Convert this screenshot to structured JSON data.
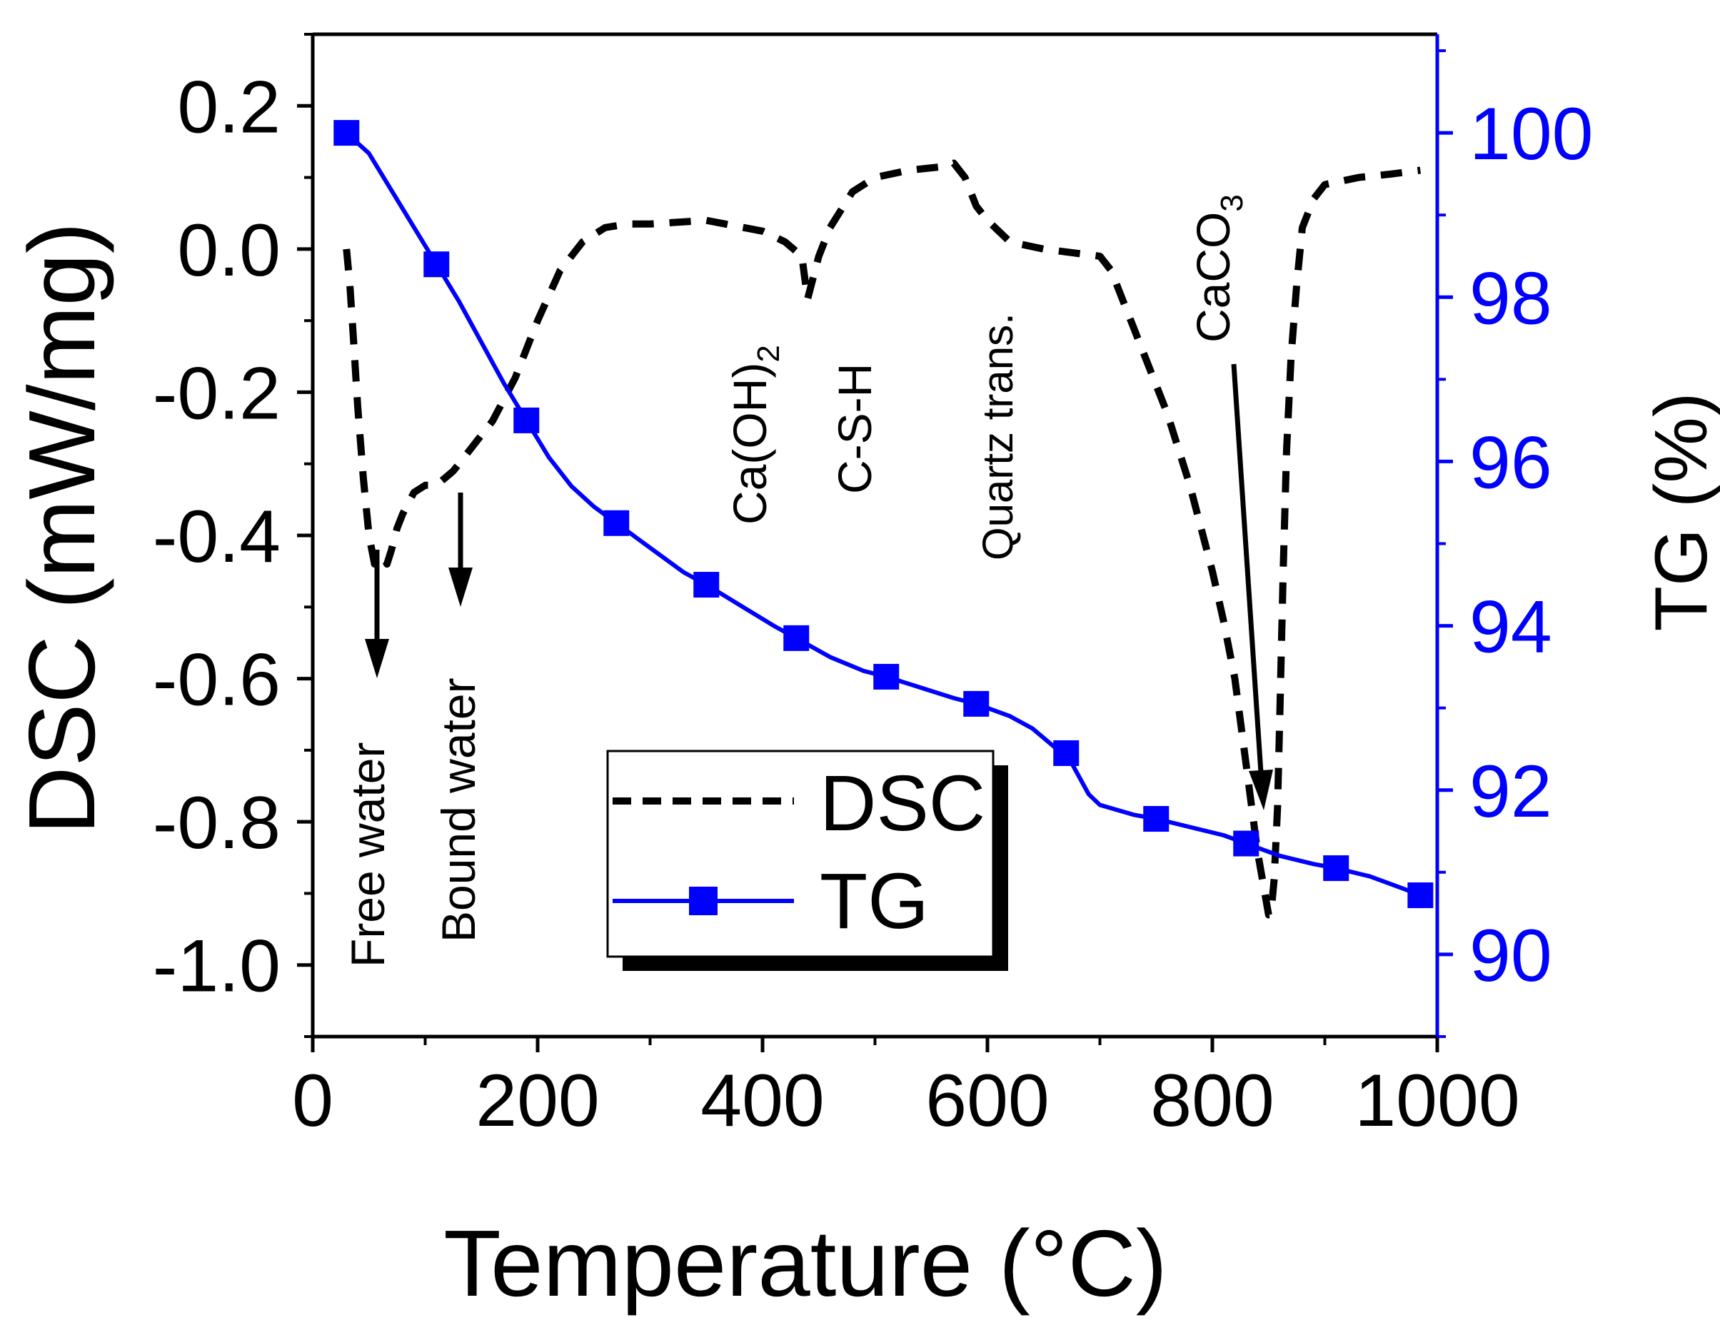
{
  "chart_data": {
    "type": "line",
    "title": "",
    "xlabel": "Temperature (°C)",
    "ylabel_left": "DSC (mW/mg)",
    "ylabel_right": "TG (%)",
    "xlim": [
      0,
      1000
    ],
    "ylim_left": [
      -1.1,
      0.3
    ],
    "ylim_right": [
      89.0,
      101.2
    ],
    "x_ticks": [
      0,
      200,
      400,
      600,
      800,
      1000
    ],
    "x_tick_labels": [
      "0",
      "200",
      "400",
      "600",
      "800",
      "1000"
    ],
    "y_left_ticks": [
      0.2,
      0.0,
      -0.2,
      -0.4,
      -0.6,
      -0.8,
      -1.0
    ],
    "y_left_tick_labels": [
      "0.2",
      "0.0",
      "-0.2",
      "-0.4",
      "-0.6",
      "-0.8",
      "-1.0"
    ],
    "y_right_ticks": [
      100,
      98,
      96,
      94,
      92,
      90
    ],
    "y_right_tick_labels": [
      "100",
      "98",
      "96",
      "94",
      "92",
      "90"
    ],
    "colors": {
      "dsc": "#000000",
      "tg": "#0000ff",
      "axis_right": "#0000ff"
    },
    "series": [
      {
        "name": "DSC",
        "axis": "left",
        "style": "dashed",
        "x": [
          30,
          33,
          36,
          40,
          45,
          50,
          55,
          60,
          63,
          66,
          70,
          75,
          80,
          90,
          100,
          110,
          125,
          140,
          160,
          180,
          200,
          220,
          240,
          260,
          280,
          300,
          350,
          400,
          420,
          435,
          440,
          445,
          450,
          460,
          480,
          500,
          530,
          560,
          570,
          580,
          590,
          600,
          620,
          650,
          700,
          710,
          720,
          730,
          740,
          760,
          780,
          800,
          810,
          820,
          830,
          840,
          850,
          852,
          855,
          858,
          860,
          863,
          866,
          870,
          875,
          880,
          890,
          900,
          930,
          960,
          985
        ],
        "y": [
          0.0,
          -0.05,
          -0.12,
          -0.22,
          -0.32,
          -0.4,
          -0.44,
          -0.43,
          -0.43,
          -0.44,
          -0.42,
          -0.39,
          -0.37,
          -0.34,
          -0.33,
          -0.33,
          -0.31,
          -0.28,
          -0.24,
          -0.18,
          -0.1,
          -0.03,
          0.01,
          0.03,
          0.035,
          0.035,
          0.04,
          0.025,
          0.01,
          -0.01,
          -0.07,
          -0.04,
          -0.01,
          0.03,
          0.08,
          0.1,
          0.11,
          0.115,
          0.12,
          0.1,
          0.06,
          0.04,
          0.01,
          0.0,
          -0.01,
          -0.03,
          -0.07,
          -0.11,
          -0.15,
          -0.23,
          -0.33,
          -0.45,
          -0.52,
          -0.6,
          -0.72,
          -0.84,
          -0.93,
          -0.93,
          -0.88,
          -0.78,
          -0.65,
          -0.45,
          -0.28,
          -0.15,
          -0.05,
          0.03,
          0.07,
          0.09,
          0.1,
          0.105,
          0.11
        ]
      },
      {
        "name": "TG",
        "axis": "right",
        "style": "solid",
        "marker": "square",
        "x": [
          30,
          50,
          70,
          90,
          110,
          130,
          150,
          170,
          190,
          210,
          230,
          250,
          270,
          300,
          330,
          350,
          380,
          410,
          430,
          460,
          490,
          510,
          540,
          570,
          590,
          620,
          640,
          660,
          670,
          680,
          690,
          700,
          710,
          730,
          750,
          780,
          810,
          830,
          860,
          890,
          910,
          940,
          970,
          985
        ],
        "y": [
          100.0,
          99.75,
          99.3,
          98.85,
          98.4,
          97.95,
          97.45,
          96.95,
          96.5,
          96.05,
          95.7,
          95.45,
          95.25,
          94.95,
          94.65,
          94.5,
          94.25,
          94.0,
          93.85,
          93.62,
          93.45,
          93.38,
          93.25,
          93.12,
          93.05,
          92.9,
          92.75,
          92.52,
          92.45,
          92.2,
          91.95,
          91.82,
          91.78,
          91.7,
          91.65,
          91.55,
          91.45,
          91.35,
          91.2,
          91.1,
          91.05,
          90.95,
          90.8,
          90.72
        ],
        "marker_x": [
          30,
          110,
          190,
          270,
          350,
          430,
          510,
          590,
          670,
          750,
          830,
          910,
          985
        ],
        "marker_y": [
          100.0,
          98.4,
          96.5,
          95.25,
          94.5,
          93.85,
          93.38,
          93.05,
          92.45,
          91.65,
          91.35,
          91.05,
          90.72
        ]
      }
    ],
    "legend": {
      "position": "bottom-center",
      "entries": [
        "DSC",
        "TG"
      ]
    },
    "annotations": {
      "free_water": "Free water",
      "bound_water": "Bound water",
      "caoh2_main": "Ca(OH)",
      "caoh2_sub": "2",
      "csh": "C-S-H",
      "quartz": "Quartz trans.",
      "caco3_main": "CaCO",
      "caco3_sub": "3"
    }
  }
}
